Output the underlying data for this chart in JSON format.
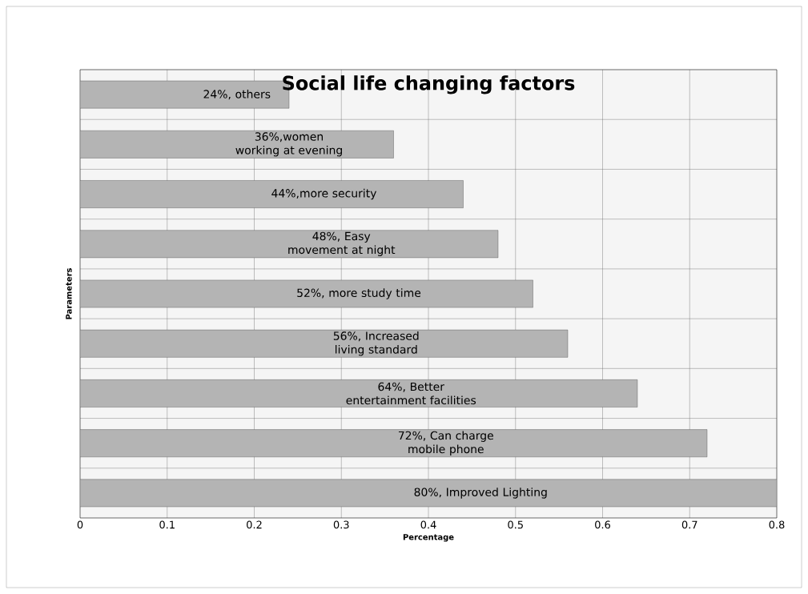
{
  "chart_data": {
    "type": "bar",
    "orientation": "horizontal",
    "title": "Social life changing factors",
    "xlabel": "Percentage",
    "ylabel": "Parameters",
    "categories": [
      null,
      null,
      null,
      null,
      null,
      null,
      null,
      null,
      null
    ],
    "values": [
      0.24,
      0.36,
      0.44,
      0.48,
      0.52,
      0.56,
      0.64,
      0.72,
      0.8
    ],
    "value_labels": [
      "24%, others",
      "36%,women working at evening",
      "44%,more security",
      "48%, Easy movement at night",
      "52%, more study time",
      "56%, Increased living standard",
      "64%, Better entertainment facilities",
      "72%, Can charge mobile phone",
      "80%, Improved Lighting"
    ],
    "color": "#b4b4b4",
    "xlim": [
      0,
      0.8
    ],
    "xticks": [
      0,
      0.1,
      0.2,
      0.3,
      0.4,
      0.5,
      0.6,
      0.7,
      0.8
    ],
    "grid": true
  }
}
